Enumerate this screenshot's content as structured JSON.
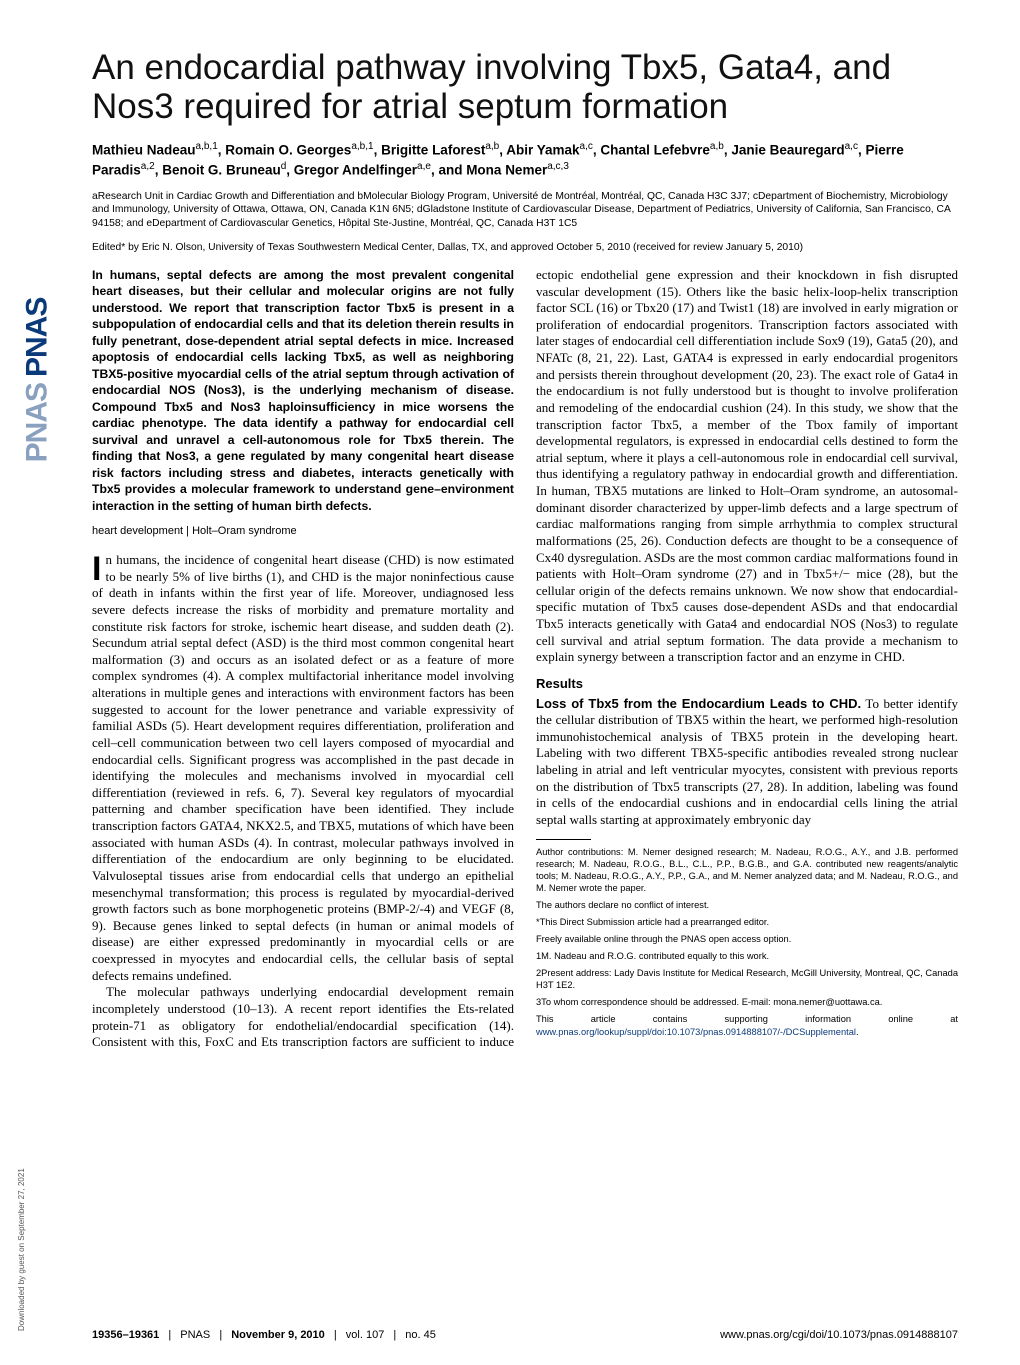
{
  "logo": {
    "text_main": "PNAS",
    "text_light": "PNAS"
  },
  "download_note": "Downloaded by guest on September 27, 2021",
  "title": "An endocardial pathway involving Tbx5, Gata4, and Nos3 required for atrial septum formation",
  "authors_html": "Mathieu Nadeau<sup>a,b,1</sup>, Romain O. Georges<sup>a,b,1</sup>, Brigitte Laforest<sup>a,b</sup>, Abir Yamak<sup>a,c</sup>, Chantal Lefebvre<sup>a,b</sup>, Janie Beauregard<sup>a,c</sup>, Pierre Paradis<sup>a,2</sup>, Benoit G. Bruneau<sup>d</sup>, Gregor Andelfinger<sup>a,e</sup>, and Mona Nemer<sup>a,c,3</sup>",
  "affiliations": "aResearch Unit in Cardiac Growth and Differentiation and bMolecular Biology Program, Université de Montréal, Montréal, QC, Canada H3C 3J7; cDepartment of Biochemistry, Microbiology and Immunology, University of Ottawa, Ottawa, ON, Canada K1N 6N5; dGladstone Institute of Cardiovascular Disease, Department of Pediatrics, University of California, San Francisco, CA 94158; and eDepartment of Cardiovascular Genetics, Hôpital Ste-Justine, Montréal, QC, Canada H3T 1C5",
  "edited": "Edited* by Eric N. Olson, University of Texas Southwestern Medical Center, Dallas, TX, and approved October 5, 2010 (received for review January 5, 2010)",
  "abstract": "In humans, septal defects are among the most prevalent congenital heart diseases, but their cellular and molecular origins are not fully understood. We report that transcription factor Tbx5 is present in a subpopulation of endocardial cells and that its deletion therein results in fully penetrant, dose-dependent atrial septal defects in mice. Increased apoptosis of endocardial cells lacking Tbx5, as well as neighboring TBX5-positive myocardial cells of the atrial septum through activation of endocardial NOS (Nos3), is the underlying mechanism of disease. Compound Tbx5 and Nos3 haploinsufficiency in mice worsens the cardiac phenotype. The data identify a pathway for endocardial cell survival and unravel a cell-autonomous role for Tbx5 therein. The finding that Nos3, a gene regulated by many congenital heart disease risk factors including stress and diabetes, interacts genetically with Tbx5 provides a molecular framework to understand gene–environment interaction in the setting of human birth defects.",
  "keywords": "heart development | Holt–Oram syndrome",
  "para1": "In humans, the incidence of congenital heart disease (CHD) is now estimated to be nearly 5% of live births (1), and CHD is the major noninfectious cause of death in infants within the first year of life. Moreover, undiagnosed less severe defects increase the risks of morbidity and premature mortality and constitute risk factors for stroke, ischemic heart disease, and sudden death (2). Secundum atrial septal defect (ASD) is the third most common congenital heart malformation (3) and occurs as an isolated defect or as a feature of more complex syndromes (4). A complex multifactorial inheritance model involving alterations in multiple genes and interactions with environment factors has been suggested to account for the lower penetrance and variable expressivity of familial ASDs (5). Heart development requires differentiation, proliferation and cell–cell communication between two cell layers composed of myocardial and endocardial cells. Significant progress was accomplished in the past decade in identifying the molecules and mechanisms involved in myocardial cell differentiation (reviewed in refs. 6, 7). Several key regulators of myocardial patterning and chamber specification have been identified. They include transcription factors GATA4, NKX2.5, and TBX5, mutations of which have been associated with human ASDs (4). In contrast, molecular pathways involved in differentiation of the endocardium are only beginning to be elucidated. Valvuloseptal tissues arise from endocardial cells that undergo an epithelial mesenchymal transformation; this process is regulated by myocardial-derived growth factors such as bone morphogenetic proteins (BMP-2/-4) and VEGF (8, 9). Because genes linked to septal defects (in human or animal models of disease) are either expressed predominantly in myocardial cells or are coexpressed in myocytes and endocardial cells, the cellular basis of septal defects remains undefined.",
  "para2": "The molecular pathways underlying endocardial development remain incompletely understood (10–13). A recent report identifies the Ets-related protein-71 as obligatory for endothelial/endocardial specification (14). Consistent with this, FoxC and Ets transcription factors are sufficient to induce ectopic endothelial gene expression and their knockdown in fish disrupted vascular development (15). Others like the basic helix-loop-helix transcription factor SCL (16) or Tbx20 (17) and Twist1 (18) are involved in early migration or proliferation of endocardial progenitors. Transcription factors associated with later stages of endocardial cell differentiation include Sox9 (19), Gata5 (20), and NFATc (8, 21, 22). Last, GATA4 is expressed in early endocardial progenitors and persists therein throughout development (20, 23). The exact role of Gata4 in the endocardium is not fully understood but is thought to involve proliferation and remodeling of the endocardial cushion (24). In this study, we show that the transcription factor Tbx5, a member of the Tbox family of important developmental regulators, is expressed in endocardial cells destined to form the atrial septum, where it plays a cell-autonomous role in endocardial cell survival, thus identifying a regulatory pathway in endocardial growth and differentiation. In human, TBX5 mutations are linked to Holt–Oram syndrome, an autosomal-dominant disorder characterized by upper-limb defects and a large spectrum of cardiac malformations ranging from simple arrhythmia to complex structural malformations (25, 26). Conduction defects are thought to be a consequence of Cx40 dysregulation. ASDs are the most common cardiac malformations found in patients with Holt–Oram syndrome (27) and in Tbx5+/− mice (28), but the cellular origin of the defects remains unknown. We now show that endocardial-specific mutation of Tbx5 causes dose-dependent ASDs and that endocardial Tbx5 interacts genetically with Gata4 and endocardial NOS (Nos3) to regulate cell survival and atrial septum formation. The data provide a mechanism to explain synergy between a transcription factor and an enzyme in CHD.",
  "results_head": "Results",
  "results_runin": "Loss of Tbx5 from the Endocardium Leads to CHD.",
  "results_para": "To better identify the cellular distribution of TBX5 within the heart, we performed high-resolution immunohistochemical analysis of TBX5 protein in the developing heart. Labeling with two different TBX5-specific antibodies revealed strong nuclear labeling in atrial and left ventricular myocytes, consistent with previous reports on the distribution of Tbx5 transcripts (27, 28). In addition, labeling was found in cells of the endocardial cushions and in endocardial cells lining the atrial septal walls starting at approximately embryonic day",
  "footnotes": {
    "contrib": "Author contributions: M. Nemer designed research; M. Nadeau, R.O.G., A.Y., and J.B. performed research; M. Nadeau, R.O.G., B.L., C.L., P.P., B.G.B., and G.A. contributed new reagents/analytic tools; M. Nadeau, R.O.G., A.Y., P.P., G.A., and M. Nemer analyzed data; and M. Nadeau, R.O.G., and M. Nemer wrote the paper.",
    "conflict": "The authors declare no conflict of interest.",
    "direct": "*This Direct Submission article had a prearranged editor.",
    "open": "Freely available online through the PNAS open access option.",
    "equal": "1M. Nadeau and R.O.G. contributed equally to this work.",
    "present": "2Present address: Lady Davis Institute for Medical Research, McGill University, Montreal, QC, Canada H3T 1E2.",
    "corr": "3To whom correspondence should be addressed. E-mail: mona.nemer@uottawa.ca.",
    "supp_pre": "This article contains supporting information online at ",
    "supp_link": "www.pnas.org/lookup/suppl/doi:10.1073/pnas.0914888107/-/DCSupplemental",
    "supp_post": "."
  },
  "footer": {
    "left_pages": "19356–19361",
    "left_pnas": "PNAS",
    "left_date": "November 9, 2010",
    "left_vol": "vol. 107",
    "left_no": "no. 45",
    "right": "www.pnas.org/cgi/doi/10.1073/pnas.0914888107"
  }
}
